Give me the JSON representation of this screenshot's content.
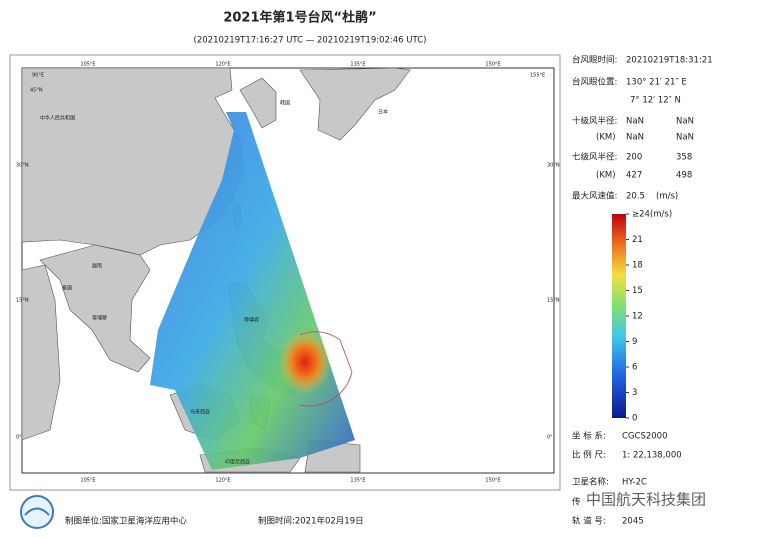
{
  "header": {
    "title": "2021年第1号台风“杜鹃”",
    "subtitle": "(20210219T17:16:27 UTC — 20210219T19:02:46 UTC)"
  },
  "map": {
    "lon_labels": [
      "90°E",
      "105°E",
      "120°E",
      "135°E",
      "150°E",
      "155°E"
    ],
    "lat_labels": [
      "45°N",
      "30°N",
      "15°N",
      "0°"
    ],
    "place_labels": [
      "中华人民共和国",
      "韩国",
      "日本",
      "越南",
      "泰国",
      "柬埔寨",
      "菲律宾",
      "马来西亚",
      "印度尼西亚"
    ]
  },
  "info": {
    "eye_time": {
      "label": "台风眼时间:",
      "value": "20210219T18:31:21"
    },
    "eye_position": {
      "label": "台风眼位置:",
      "lon": "130° 21′ 21″ E",
      "lat": "7° 12′ 12″ N"
    },
    "r10": {
      "label": "十级风半径:",
      "unit": "(KM)",
      "values": [
        "NaN",
        "NaN",
        "NaN",
        "NaN"
      ]
    },
    "r7": {
      "label": "七级风半径:",
      "unit": "(KM)",
      "values": [
        "200",
        "358",
        "427",
        "498"
      ]
    },
    "max_wind": {
      "label": "最大风速值:",
      "value": "20.5",
      "unit": "(m/s)"
    },
    "colorbar": {
      "lim": [
        0,
        24
      ],
      "ticks": [
        {
          "value": 24,
          "label": "≥24(m/s)"
        },
        21,
        18,
        15,
        12,
        9,
        6,
        3,
        0
      ]
    },
    "crs": {
      "label": "坐 标 系:",
      "value": "CGCS2000"
    },
    "scale": {
      "label": "比 例 尺:",
      "value": "1: 22,138,000"
    },
    "satellite": {
      "label": "卫星名称:",
      "value": "HY-2C"
    },
    "sensor": {
      "label": "传"
    },
    "orbit": {
      "label": "轨 道 号:",
      "value": "2045"
    }
  },
  "footer": {
    "unit": "制图单位:国家卫星海洋应用中心",
    "date": "制图时间:2021年02月19日",
    "watermark": "中国航天科技集团"
  }
}
